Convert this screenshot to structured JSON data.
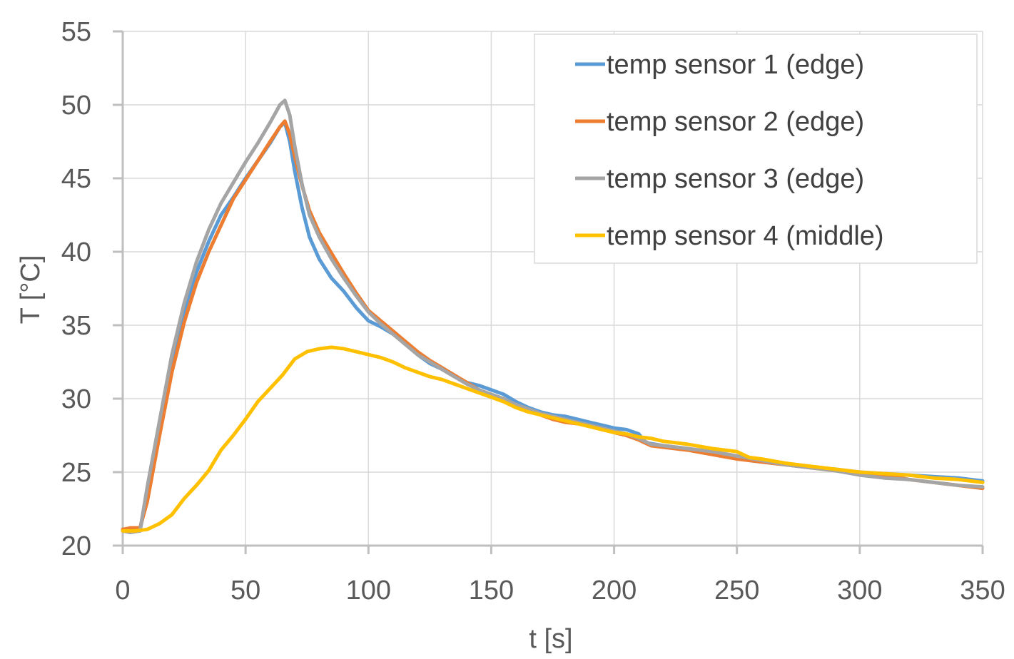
{
  "chart_data": {
    "type": "line",
    "xlabel": "t [s]",
    "ylabel": "T [°C]",
    "xlim": [
      0,
      350
    ],
    "ylim": [
      20,
      55
    ],
    "x_ticks": [
      "0",
      "50",
      "100",
      "150",
      "200",
      "250",
      "300",
      "350"
    ],
    "y_ticks": [
      "20",
      "25",
      "30",
      "35",
      "40",
      "45",
      "50",
      "55"
    ],
    "grid": "vertical and horizontal major gridlines",
    "legend_position": "top-right",
    "series": [
      {
        "name": "temp sensor 1 (edge)",
        "color": "#5b9bd5",
        "points": [
          [
            0,
            21.0
          ],
          [
            3,
            21.0
          ],
          [
            7,
            21.0
          ],
          [
            10,
            23.5
          ],
          [
            15,
            28.0
          ],
          [
            20,
            32.5
          ],
          [
            25,
            36.0
          ],
          [
            30,
            38.6
          ],
          [
            35,
            40.7
          ],
          [
            40,
            42.5
          ],
          [
            45,
            43.7
          ],
          [
            50,
            45.0
          ],
          [
            55,
            46.2
          ],
          [
            60,
            47.4
          ],
          [
            64,
            48.5
          ],
          [
            66,
            48.8
          ],
          [
            68,
            47.5
          ],
          [
            70,
            45.5
          ],
          [
            73,
            43.0
          ],
          [
            76,
            41.0
          ],
          [
            80,
            39.5
          ],
          [
            85,
            38.2
          ],
          [
            90,
            37.3
          ],
          [
            95,
            36.2
          ],
          [
            100,
            35.3
          ],
          [
            105,
            34.9
          ],
          [
            110,
            34.4
          ],
          [
            115,
            33.8
          ],
          [
            120,
            33.0
          ],
          [
            125,
            32.4
          ],
          [
            130,
            32.0
          ],
          [
            135,
            31.5
          ],
          [
            140,
            31.1
          ],
          [
            145,
            30.9
          ],
          [
            150,
            30.6
          ],
          [
            155,
            30.3
          ],
          [
            160,
            29.8
          ],
          [
            165,
            29.4
          ],
          [
            170,
            29.1
          ],
          [
            175,
            28.9
          ],
          [
            180,
            28.8
          ],
          [
            185,
            28.6
          ],
          [
            190,
            28.4
          ],
          [
            195,
            28.2
          ],
          [
            200,
            28.0
          ],
          [
            205,
            27.9
          ],
          [
            210,
            27.6
          ],
          [
            213,
            27.0
          ],
          [
            220,
            26.8
          ],
          [
            230,
            26.6
          ],
          [
            240,
            26.3
          ],
          [
            250,
            26.1
          ],
          [
            255,
            25.8
          ],
          [
            260,
            25.7
          ],
          [
            270,
            25.5
          ],
          [
            280,
            25.3
          ],
          [
            290,
            25.2
          ],
          [
            300,
            25.0
          ],
          [
            310,
            24.9
          ],
          [
            320,
            24.8
          ],
          [
            330,
            24.7
          ],
          [
            340,
            24.6
          ],
          [
            350,
            24.4
          ]
        ]
      },
      {
        "name": "temp sensor 2 (edge)",
        "color": "#ed7d31",
        "points": [
          [
            0,
            21.1
          ],
          [
            3,
            21.2
          ],
          [
            7,
            21.2
          ],
          [
            10,
            23.0
          ],
          [
            15,
            27.5
          ],
          [
            20,
            31.8
          ],
          [
            25,
            35.2
          ],
          [
            30,
            37.9
          ],
          [
            35,
            40.0
          ],
          [
            40,
            41.8
          ],
          [
            45,
            43.6
          ],
          [
            50,
            44.9
          ],
          [
            55,
            46.2
          ],
          [
            60,
            47.5
          ],
          [
            64,
            48.5
          ],
          [
            66,
            48.9
          ],
          [
            68,
            48.0
          ],
          [
            70,
            46.5
          ],
          [
            73,
            44.5
          ],
          [
            76,
            42.8
          ],
          [
            80,
            41.3
          ],
          [
            85,
            39.9
          ],
          [
            90,
            38.5
          ],
          [
            95,
            37.2
          ],
          [
            100,
            36.0
          ],
          [
            105,
            35.3
          ],
          [
            110,
            34.6
          ],
          [
            115,
            33.9
          ],
          [
            120,
            33.2
          ],
          [
            125,
            32.6
          ],
          [
            130,
            32.1
          ],
          [
            135,
            31.6
          ],
          [
            140,
            31.1
          ],
          [
            145,
            30.6
          ],
          [
            150,
            30.2
          ],
          [
            155,
            29.9
          ],
          [
            160,
            29.5
          ],
          [
            165,
            29.2
          ],
          [
            170,
            28.9
          ],
          [
            175,
            28.6
          ],
          [
            180,
            28.4
          ],
          [
            185,
            28.3
          ],
          [
            190,
            28.2
          ],
          [
            195,
            28.0
          ],
          [
            200,
            27.7
          ],
          [
            205,
            27.5
          ],
          [
            210,
            27.2
          ],
          [
            215,
            26.8
          ],
          [
            220,
            26.7
          ],
          [
            230,
            26.5
          ],
          [
            240,
            26.2
          ],
          [
            250,
            25.9
          ],
          [
            260,
            25.7
          ],
          [
            270,
            25.5
          ],
          [
            280,
            25.3
          ],
          [
            290,
            25.1
          ],
          [
            300,
            24.9
          ],
          [
            310,
            24.8
          ],
          [
            320,
            24.5
          ],
          [
            330,
            24.3
          ],
          [
            340,
            24.1
          ],
          [
            350,
            23.9
          ]
        ]
      },
      {
        "name": "temp sensor 3 (edge)",
        "color": "#a5a5a5",
        "points": [
          [
            0,
            21.0
          ],
          [
            3,
            20.9
          ],
          [
            7,
            21.0
          ],
          [
            10,
            24.0
          ],
          [
            15,
            28.5
          ],
          [
            20,
            33.0
          ],
          [
            25,
            36.5
          ],
          [
            30,
            39.3
          ],
          [
            35,
            41.5
          ],
          [
            40,
            43.3
          ],
          [
            45,
            44.7
          ],
          [
            50,
            46.1
          ],
          [
            55,
            47.4
          ],
          [
            60,
            48.8
          ],
          [
            64,
            50.0
          ],
          [
            66,
            50.3
          ],
          [
            68,
            49.3
          ],
          [
            70,
            47.2
          ],
          [
            73,
            44.6
          ],
          [
            76,
            42.5
          ],
          [
            80,
            41.0
          ],
          [
            85,
            39.5
          ],
          [
            90,
            38.2
          ],
          [
            95,
            37.0
          ],
          [
            100,
            35.9
          ],
          [
            105,
            35.1
          ],
          [
            110,
            34.4
          ],
          [
            115,
            33.7
          ],
          [
            120,
            33.0
          ],
          [
            125,
            32.5
          ],
          [
            130,
            32.0
          ],
          [
            135,
            31.5
          ],
          [
            140,
            31.0
          ],
          [
            145,
            30.6
          ],
          [
            150,
            30.3
          ],
          [
            155,
            30.0
          ],
          [
            160,
            29.6
          ],
          [
            165,
            29.3
          ],
          [
            170,
            29.0
          ],
          [
            175,
            28.8
          ],
          [
            180,
            28.6
          ],
          [
            185,
            28.4
          ],
          [
            190,
            28.2
          ],
          [
            195,
            28.0
          ],
          [
            200,
            27.8
          ],
          [
            205,
            27.6
          ],
          [
            210,
            27.3
          ],
          [
            215,
            26.9
          ],
          [
            220,
            26.8
          ],
          [
            230,
            26.6
          ],
          [
            240,
            26.4
          ],
          [
            250,
            26.1
          ],
          [
            260,
            25.8
          ],
          [
            270,
            25.5
          ],
          [
            280,
            25.3
          ],
          [
            290,
            25.1
          ],
          [
            300,
            24.8
          ],
          [
            310,
            24.6
          ],
          [
            320,
            24.5
          ],
          [
            330,
            24.3
          ],
          [
            340,
            24.1
          ],
          [
            350,
            24.0
          ]
        ]
      },
      {
        "name": "temp sensor 4 (middle)",
        "color": "#ffc000",
        "points": [
          [
            0,
            21.0
          ],
          [
            5,
            21.0
          ],
          [
            10,
            21.1
          ],
          [
            15,
            21.5
          ],
          [
            20,
            22.1
          ],
          [
            25,
            23.2
          ],
          [
            30,
            24.1
          ],
          [
            35,
            25.1
          ],
          [
            40,
            26.5
          ],
          [
            45,
            27.5
          ],
          [
            50,
            28.6
          ],
          [
            55,
            29.8
          ],
          [
            60,
            30.7
          ],
          [
            65,
            31.6
          ],
          [
            70,
            32.7
          ],
          [
            75,
            33.2
          ],
          [
            80,
            33.4
          ],
          [
            85,
            33.5
          ],
          [
            90,
            33.4
          ],
          [
            95,
            33.2
          ],
          [
            100,
            33.0
          ],
          [
            105,
            32.8
          ],
          [
            110,
            32.5
          ],
          [
            115,
            32.1
          ],
          [
            120,
            31.8
          ],
          [
            125,
            31.5
          ],
          [
            130,
            31.3
          ],
          [
            135,
            31.0
          ],
          [
            140,
            30.7
          ],
          [
            145,
            30.4
          ],
          [
            150,
            30.1
          ],
          [
            155,
            29.8
          ],
          [
            160,
            29.4
          ],
          [
            165,
            29.1
          ],
          [
            170,
            28.9
          ],
          [
            175,
            28.7
          ],
          [
            180,
            28.5
          ],
          [
            185,
            28.3
          ],
          [
            190,
            28.1
          ],
          [
            195,
            27.9
          ],
          [
            200,
            27.7
          ],
          [
            205,
            27.6
          ],
          [
            210,
            27.4
          ],
          [
            215,
            27.3
          ],
          [
            220,
            27.1
          ],
          [
            230,
            26.9
          ],
          [
            240,
            26.6
          ],
          [
            250,
            26.4
          ],
          [
            255,
            26.0
          ],
          [
            260,
            25.9
          ],
          [
            270,
            25.6
          ],
          [
            280,
            25.4
          ],
          [
            290,
            25.2
          ],
          [
            300,
            25.0
          ],
          [
            310,
            24.9
          ],
          [
            320,
            24.8
          ],
          [
            330,
            24.6
          ],
          [
            340,
            24.5
          ],
          [
            350,
            24.3
          ]
        ]
      }
    ]
  }
}
